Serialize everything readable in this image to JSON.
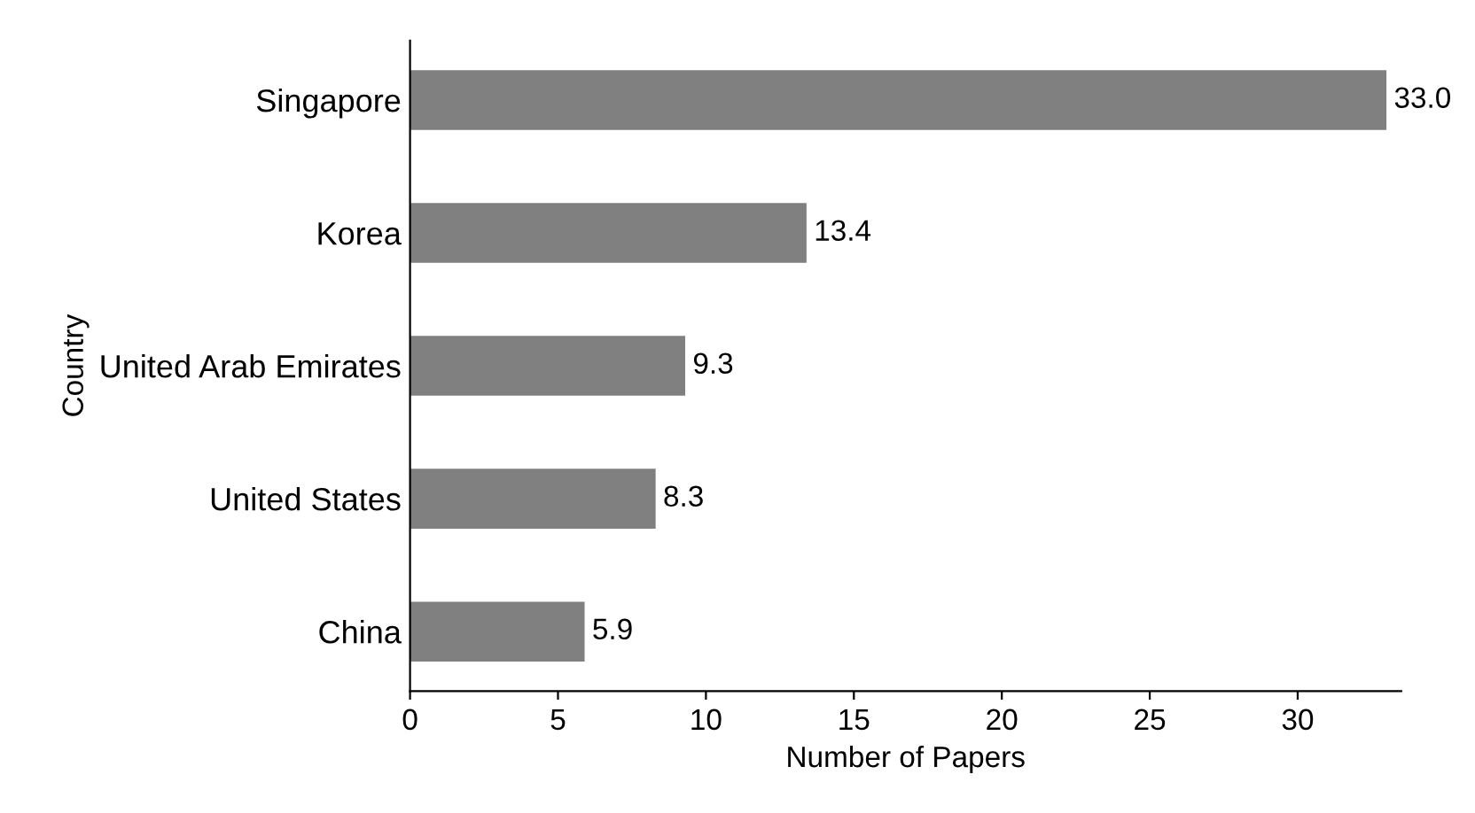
{
  "chart_data": {
    "type": "bar",
    "orientation": "horizontal",
    "xlabel": "Number of Papers",
    "ylabel": "Country",
    "categories": [
      "Singapore",
      "Korea",
      "United Arab Emirates",
      "United States",
      "China"
    ],
    "values": [
      33.0,
      13.4,
      9.3,
      8.3,
      5.9
    ],
    "value_labels": [
      "33.0",
      "13.4",
      "9.3",
      "8.3",
      "5.9"
    ],
    "color": "#808080",
    "xlim": [
      0,
      33.5
    ],
    "xticks": [
      0,
      5,
      10,
      15,
      20,
      25,
      30
    ],
    "grid": false,
    "legend": false
  }
}
